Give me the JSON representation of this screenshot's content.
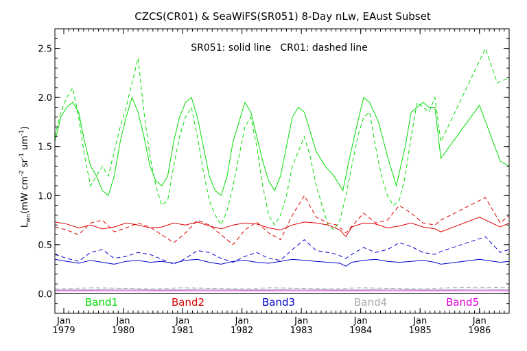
{
  "chart_data": {
    "type": "line",
    "title": "CZCS(CR01) & SeaWiFS(SR051) 8-Day nLw, EAust Subset",
    "annotation": "SR051: solid line   CR01: dashed line",
    "ylabel_main": "L",
    "ylabel_sub": "wn",
    "ylabel_units_prefix": "(mW cm",
    "ylabel_units_exp1": "-2",
    "ylabel_units_mid1": " sr",
    "ylabel_units_exp2": "-1",
    "ylabel_units_mid2": " um",
    "ylabel_units_exp3": "-1",
    "ylabel_units_suffix": ")",
    "ylim": [
      -0.2,
      2.7
    ],
    "xlim": [
      1978.85,
      1986.5
    ],
    "grid": false,
    "yticks": [
      {
        "value": 0.0,
        "label": "0.0"
      },
      {
        "value": 0.5,
        "label": "0.5"
      },
      {
        "value": 1.0,
        "label": "1.0"
      },
      {
        "value": 1.5,
        "label": "1.5"
      },
      {
        "value": 2.0,
        "label": "2.0"
      },
      {
        "value": 2.5,
        "label": "2.5"
      }
    ],
    "xticks": [
      {
        "value": 1979.0,
        "month": "Jan",
        "year": "1979"
      },
      {
        "value": 1980.0,
        "month": "Jan",
        "year": "1980"
      },
      {
        "value": 1981.0,
        "month": "Jan",
        "year": "1981"
      },
      {
        "value": 1982.0,
        "month": "Jan",
        "year": "1982"
      },
      {
        "value": 1983.0,
        "month": "Jan",
        "year": "1983"
      },
      {
        "value": 1984.0,
        "month": "Jan",
        "year": "1984"
      },
      {
        "value": 1985.0,
        "month": "Jan",
        "year": "1985"
      },
      {
        "value": 1986.0,
        "month": "Jan",
        "year": "1986"
      }
    ],
    "legend": [
      {
        "name": "Band1",
        "color": "#00dd00"
      },
      {
        "name": "Band2",
        "color": "#dd0000"
      },
      {
        "name": "Band3",
        "color": "#0000cc"
      },
      {
        "name": "Band4",
        "color": "#aaaaaa"
      },
      {
        "name": "Band5",
        "color": "#dd00dd"
      }
    ],
    "series": [
      {
        "band": "Band1",
        "style": "solid",
        "color": "#00dd00",
        "x": [
          1978.85,
          1978.95,
          1979.05,
          1979.15,
          1979.25,
          1979.35,
          1979.45,
          1979.55,
          1979.65,
          1979.75,
          1979.85,
          1979.95,
          1980.05,
          1980.15,
          1980.25,
          1980.35,
          1980.45,
          1980.55,
          1980.65,
          1980.75,
          1980.85,
          1980.95,
          1981.05,
          1981.15,
          1981.25,
          1981.35,
          1981.45,
          1981.55,
          1981.65,
          1981.75,
          1981.85,
          1981.95,
          1982.05,
          1982.15,
          1982.25,
          1982.35,
          1982.45,
          1982.55,
          1982.65,
          1982.75,
          1982.85,
          1982.95,
          1983.05,
          1983.15,
          1983.25,
          1983.4,
          1983.55,
          1983.7,
          1983.8,
          1983.95,
          1984.05,
          1984.15,
          1984.3,
          1984.45,
          1984.6,
          1984.75,
          1984.85,
          1984.95,
          1985.05,
          1985.15,
          1985.25,
          1985.35,
          1986.0,
          1986.35,
          1986.5
        ],
        "y": [
          1.55,
          1.8,
          1.9,
          1.95,
          1.85,
          1.55,
          1.3,
          1.2,
          1.05,
          1.0,
          1.2,
          1.55,
          1.8,
          2.0,
          1.85,
          1.6,
          1.3,
          1.15,
          1.1,
          1.2,
          1.55,
          1.8,
          1.95,
          2.0,
          1.8,
          1.5,
          1.2,
          1.05,
          1.0,
          1.2,
          1.55,
          1.75,
          1.95,
          1.85,
          1.6,
          1.35,
          1.15,
          1.05,
          1.2,
          1.5,
          1.8,
          1.9,
          1.85,
          1.65,
          1.45,
          1.3,
          1.2,
          1.05,
          1.35,
          1.75,
          2.0,
          1.95,
          1.75,
          1.4,
          1.1,
          1.5,
          1.85,
          1.9,
          1.95,
          1.9,
          1.9,
          1.38,
          1.92,
          1.35,
          1.3
        ]
      },
      {
        "band": "Band1",
        "style": "dashed",
        "color": "#00dd00",
        "x": [
          1978.85,
          1978.95,
          1979.05,
          1979.15,
          1979.25,
          1979.35,
          1979.45,
          1979.55,
          1979.65,
          1979.75,
          1979.85,
          1979.95,
          1980.05,
          1980.15,
          1980.25,
          1980.35,
          1980.45,
          1980.55,
          1980.65,
          1980.75,
          1980.85,
          1980.95,
          1981.05,
          1981.15,
          1981.25,
          1981.35,
          1981.45,
          1981.55,
          1981.65,
          1981.75,
          1981.85,
          1981.95,
          1982.05,
          1982.15,
          1982.25,
          1982.35,
          1982.45,
          1982.55,
          1982.65,
          1982.75,
          1982.85,
          1982.95,
          1983.05,
          1983.15,
          1983.25,
          1983.35,
          1983.45,
          1983.55,
          1983.65,
          1983.75,
          1983.85,
          1983.95,
          1984.05,
          1984.15,
          1984.25,
          1984.35,
          1984.45,
          1984.55,
          1984.65,
          1984.75,
          1984.85,
          1984.95,
          1985.05,
          1985.15,
          1985.25,
          1985.35,
          1986.1,
          1986.3,
          1986.5
        ],
        "y": [
          1.6,
          1.85,
          2.0,
          2.1,
          1.8,
          1.4,
          1.1,
          1.2,
          1.3,
          1.2,
          1.45,
          1.7,
          1.9,
          2.15,
          2.4,
          1.85,
          1.4,
          1.1,
          0.9,
          0.95,
          1.3,
          1.6,
          1.8,
          1.9,
          1.6,
          1.25,
          0.95,
          0.8,
          0.7,
          0.85,
          1.1,
          1.4,
          1.7,
          1.8,
          1.5,
          1.1,
          0.8,
          0.7,
          0.8,
          1.0,
          1.3,
          1.45,
          1.6,
          1.4,
          1.1,
          0.9,
          0.7,
          0.65,
          0.75,
          1.0,
          1.3,
          1.6,
          1.8,
          1.85,
          1.5,
          1.2,
          1.0,
          0.9,
          0.95,
          1.2,
          1.6,
          1.95,
          1.9,
          1.85,
          2.0,
          1.55,
          2.5,
          2.15,
          2.2
        ]
      },
      {
        "band": "Band2",
        "style": "solid",
        "color": "#dd0000",
        "x": [
          1978.85,
          1979.05,
          1979.25,
          1979.45,
          1979.65,
          1979.85,
          1980.05,
          1980.25,
          1980.45,
          1980.65,
          1980.85,
          1981.05,
          1981.25,
          1981.45,
          1981.65,
          1981.85,
          1982.05,
          1982.25,
          1982.45,
          1982.65,
          1982.85,
          1983.05,
          1983.25,
          1983.45,
          1983.65,
          1983.75,
          1983.85,
          1984.05,
          1984.25,
          1984.45,
          1984.65,
          1984.85,
          1985.05,
          1985.25,
          1985.35,
          1986.0,
          1986.35,
          1986.5
        ],
        "y": [
          0.73,
          0.71,
          0.67,
          0.7,
          0.66,
          0.68,
          0.72,
          0.7,
          0.67,
          0.68,
          0.72,
          0.7,
          0.73,
          0.69,
          0.66,
          0.7,
          0.72,
          0.71,
          0.67,
          0.65,
          0.7,
          0.73,
          0.72,
          0.7,
          0.65,
          0.58,
          0.68,
          0.72,
          0.71,
          0.67,
          0.69,
          0.72,
          0.68,
          0.66,
          0.63,
          0.78,
          0.68,
          0.72
        ]
      },
      {
        "band": "Band2",
        "style": "dashed",
        "color": "#dd0000",
        "x": [
          1978.85,
          1979.05,
          1979.25,
          1979.45,
          1979.65,
          1979.85,
          1980.05,
          1980.25,
          1980.45,
          1980.65,
          1980.85,
          1981.05,
          1981.25,
          1981.45,
          1981.65,
          1981.85,
          1982.05,
          1982.25,
          1982.45,
          1982.65,
          1982.85,
          1983.05,
          1983.25,
          1983.45,
          1983.6,
          1983.75,
          1983.9,
          1984.05,
          1984.25,
          1984.45,
          1984.65,
          1984.85,
          1985.05,
          1985.25,
          1985.35,
          1986.1,
          1986.35,
          1986.5
        ],
        "y": [
          0.68,
          0.65,
          0.6,
          0.72,
          0.75,
          0.63,
          0.67,
          0.72,
          0.68,
          0.6,
          0.52,
          0.62,
          0.75,
          0.7,
          0.6,
          0.5,
          0.65,
          0.73,
          0.62,
          0.55,
          0.8,
          1.0,
          0.78,
          0.72,
          0.7,
          0.62,
          0.72,
          0.82,
          0.72,
          0.75,
          0.9,
          0.82,
          0.72,
          0.7,
          0.75,
          0.98,
          0.72,
          0.8
        ]
      },
      {
        "band": "Band3",
        "style": "solid",
        "color": "#0000cc",
        "x": [
          1978.85,
          1979.05,
          1979.25,
          1979.45,
          1979.65,
          1979.85,
          1980.05,
          1980.25,
          1980.45,
          1980.65,
          1980.85,
          1981.05,
          1981.25,
          1981.45,
          1981.65,
          1981.85,
          1982.05,
          1982.25,
          1982.45,
          1982.65,
          1982.85,
          1983.05,
          1983.25,
          1983.45,
          1983.65,
          1983.75,
          1983.85,
          1984.05,
          1984.25,
          1984.45,
          1984.65,
          1984.85,
          1985.05,
          1985.25,
          1985.35,
          1986.0,
          1986.35,
          1986.5
        ],
        "y": [
          0.35,
          0.33,
          0.31,
          0.34,
          0.32,
          0.3,
          0.33,
          0.34,
          0.32,
          0.33,
          0.31,
          0.34,
          0.35,
          0.32,
          0.3,
          0.33,
          0.34,
          0.32,
          0.31,
          0.33,
          0.35,
          0.34,
          0.33,
          0.32,
          0.31,
          0.28,
          0.32,
          0.34,
          0.35,
          0.33,
          0.32,
          0.33,
          0.34,
          0.32,
          0.3,
          0.35,
          0.32,
          0.33
        ]
      },
      {
        "band": "Band3",
        "style": "dashed",
        "color": "#0000cc",
        "x": [
          1978.85,
          1979.05,
          1979.25,
          1979.45,
          1979.65,
          1979.85,
          1980.05,
          1980.25,
          1980.45,
          1980.65,
          1980.85,
          1981.05,
          1981.25,
          1981.45,
          1981.65,
          1981.85,
          1982.05,
          1982.25,
          1982.45,
          1982.65,
          1982.85,
          1983.05,
          1983.25,
          1983.45,
          1983.6,
          1983.75,
          1983.9,
          1984.05,
          1984.25,
          1984.45,
          1984.65,
          1984.85,
          1985.05,
          1985.25,
          1985.35,
          1986.1,
          1986.35,
          1986.5
        ],
        "y": [
          0.4,
          0.36,
          0.33,
          0.42,
          0.45,
          0.36,
          0.38,
          0.42,
          0.4,
          0.35,
          0.3,
          0.36,
          0.44,
          0.42,
          0.36,
          0.32,
          0.38,
          0.42,
          0.36,
          0.34,
          0.45,
          0.55,
          0.44,
          0.42,
          0.4,
          0.36,
          0.42,
          0.47,
          0.42,
          0.45,
          0.52,
          0.48,
          0.42,
          0.4,
          0.43,
          0.58,
          0.42,
          0.45
        ]
      },
      {
        "band": "Band4",
        "style": "solid",
        "color": "#aaaaaa",
        "x": [
          1978.85,
          1979.5,
          1980.0,
          1980.5,
          1981.0,
          1981.5,
          1982.0,
          1982.5,
          1983.0,
          1983.5,
          1984.0,
          1984.5,
          1985.0,
          1985.5,
          1986.0,
          1986.5
        ],
        "y": [
          0.04,
          0.04,
          0.045,
          0.04,
          0.04,
          0.045,
          0.04,
          0.04,
          0.045,
          0.04,
          0.04,
          0.045,
          0.04,
          0.04,
          0.045,
          0.04
        ]
      },
      {
        "band": "Band4",
        "style": "dashed",
        "color": "#aaaaaa",
        "x": [
          1978.85,
          1979.5,
          1980.0,
          1980.5,
          1981.0,
          1981.5,
          1982.0,
          1982.5,
          1983.0,
          1983.5,
          1984.0,
          1984.5,
          1985.0,
          1985.5,
          1986.0,
          1986.5
        ],
        "y": [
          0.05,
          0.06,
          0.055,
          0.05,
          0.06,
          0.055,
          0.05,
          0.06,
          0.055,
          0.05,
          0.06,
          0.055,
          0.05,
          0.06,
          0.065,
          0.06
        ]
      },
      {
        "band": "Band5",
        "style": "solid",
        "color": "#dd00dd",
        "x": [
          1978.85,
          1979.5,
          1980.0,
          1980.5,
          1981.0,
          1981.5,
          1982.0,
          1982.5,
          1983.0,
          1983.5,
          1984.0,
          1984.5,
          1985.0,
          1985.5,
          1986.0,
          1986.5
        ],
        "y": [
          0.03,
          0.03,
          0.03,
          0.03,
          0.03,
          0.03,
          0.03,
          0.03,
          0.03,
          0.03,
          0.03,
          0.03,
          0.03,
          0.03,
          0.03,
          0.03
        ]
      }
    ],
    "zero_line": {
      "y": 0.0,
      "color": "#000000"
    }
  }
}
